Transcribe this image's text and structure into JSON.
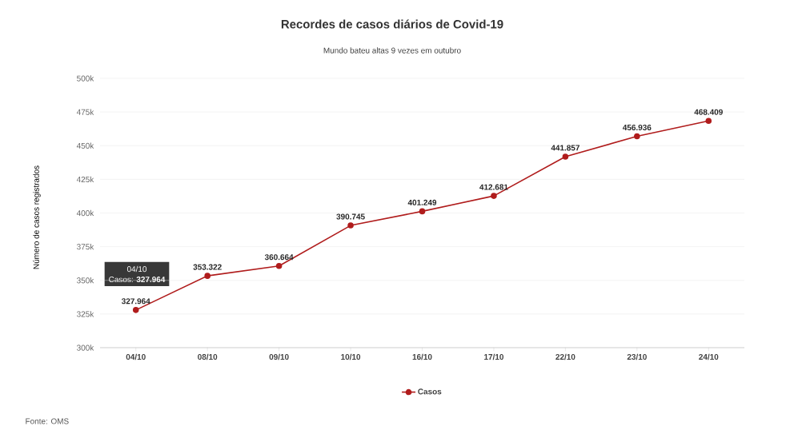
{
  "chart_data": {
    "type": "line",
    "title": "Recordes de casos diários de Covid-19",
    "subtitle": "Mundo bateu altas 9 vezes em outubro",
    "ylabel": "Número de casos registrados",
    "categories": [
      "04/10",
      "08/10",
      "09/10",
      "10/10",
      "16/10",
      "17/10",
      "22/10",
      "23/10",
      "24/10"
    ],
    "series": [
      {
        "name": "Casos",
        "color": "#b01c1c",
        "values": [
          327964,
          353322,
          360664,
          390745,
          401249,
          412681,
          441857,
          456936,
          468409
        ],
        "value_labels": [
          "327.964",
          "353.322",
          "360.664",
          "390.745",
          "401.249",
          "412.681",
          "441.857",
          "456.936",
          "468.409"
        ]
      }
    ],
    "ylim": [
      300000,
      500000
    ],
    "yticks": [
      {
        "value": 300000,
        "label": "300k"
      },
      {
        "value": 325000,
        "label": "325k"
      },
      {
        "value": 350000,
        "label": "350k"
      },
      {
        "value": 375000,
        "label": "375k"
      },
      {
        "value": 400000,
        "label": "400k"
      },
      {
        "value": 425000,
        "label": "425k"
      },
      {
        "value": 450000,
        "label": "450k"
      },
      {
        "value": 475000,
        "label": "475k"
      },
      {
        "value": 500000,
        "label": "500k"
      }
    ],
    "grid": "y",
    "legend": "bottom",
    "marker": "circle",
    "line_style": "solid",
    "annotations": [
      "04/10",
      "Casos: **327.964**",
      "Fonte: OMS"
    ]
  }
}
